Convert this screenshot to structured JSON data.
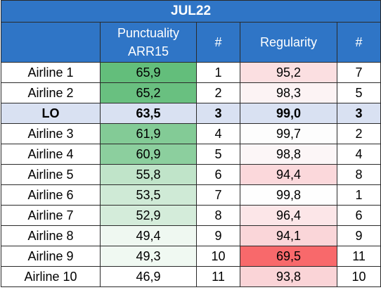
{
  "title": "JUL22",
  "columns": {
    "airline": "",
    "punctuality_line1": "Punctuality",
    "punctuality_line2": "ARR15",
    "rank1": "#",
    "regularity": "Regularity",
    "rank2": "#"
  },
  "rows": [
    {
      "airline": "Airline 1",
      "punctuality": "65,9",
      "p_rank": "1",
      "regularity": "95,2",
      "r_rank": "7",
      "p_color": "#63be7b",
      "r_color": "#fbdfe1",
      "highlight": false
    },
    {
      "airline": "Airline 2",
      "punctuality": "65,2",
      "p_rank": "2",
      "regularity": "98,3",
      "r_rank": "5",
      "p_color": "#69c080",
      "r_color": "#fcf3f4",
      "highlight": false
    },
    {
      "airline": "LO",
      "punctuality": "63,5",
      "p_rank": "3",
      "regularity": "99,0",
      "r_rank": "3",
      "p_color": "#76c68b",
      "r_color": "#d9e1f2",
      "highlight": true
    },
    {
      "airline": "Airline 3",
      "punctuality": "61,9",
      "p_rank": "4",
      "regularity": "99,7",
      "r_rank": "2",
      "p_color": "#83cb96",
      "r_color": "#fdfdfd",
      "highlight": false
    },
    {
      "airline": "Airline 4",
      "punctuality": "60,9",
      "p_rank": "5",
      "regularity": "98,8",
      "r_rank": "4",
      "p_color": "#8ccf9e",
      "r_color": "#fcf6f7",
      "highlight": false
    },
    {
      "airline": "Airline 5",
      "punctuality": "55,8",
      "p_rank": "6",
      "regularity": "94,4",
      "r_rank": "8",
      "p_color": "#c0e4c9",
      "r_color": "#fbd8db",
      "highlight": false
    },
    {
      "airline": "Airline 6",
      "punctuality": "53,5",
      "p_rank": "7",
      "regularity": "99,8",
      "r_rank": "1",
      "p_color": "#cfead6",
      "r_color": "#fefefe",
      "highlight": false
    },
    {
      "airline": "Airline 7",
      "punctuality": "52,9",
      "p_rank": "8",
      "regularity": "96,4",
      "r_rank": "6",
      "p_color": "#d4ecda",
      "r_color": "#fce6e8",
      "highlight": false
    },
    {
      "airline": "Airline 8",
      "punctuality": "49,4",
      "p_rank": "9",
      "regularity": "94,1",
      "r_rank": "9",
      "p_color": "#eff8f1",
      "r_color": "#fad6d9",
      "highlight": false
    },
    {
      "airline": "Airline 9",
      "punctuality": "49,3",
      "p_rank": "10",
      "regularity": "69,5",
      "r_rank": "11",
      "p_color": "#f0f9f2",
      "r_color": "#f8696b",
      "highlight": false
    },
    {
      "airline": "Airline 10",
      "punctuality": "46,9",
      "p_rank": "11",
      "regularity": "93,8",
      "r_rank": "10",
      "p_color": "#ffffff",
      "r_color": "#fad4d7",
      "highlight": false
    }
  ]
}
